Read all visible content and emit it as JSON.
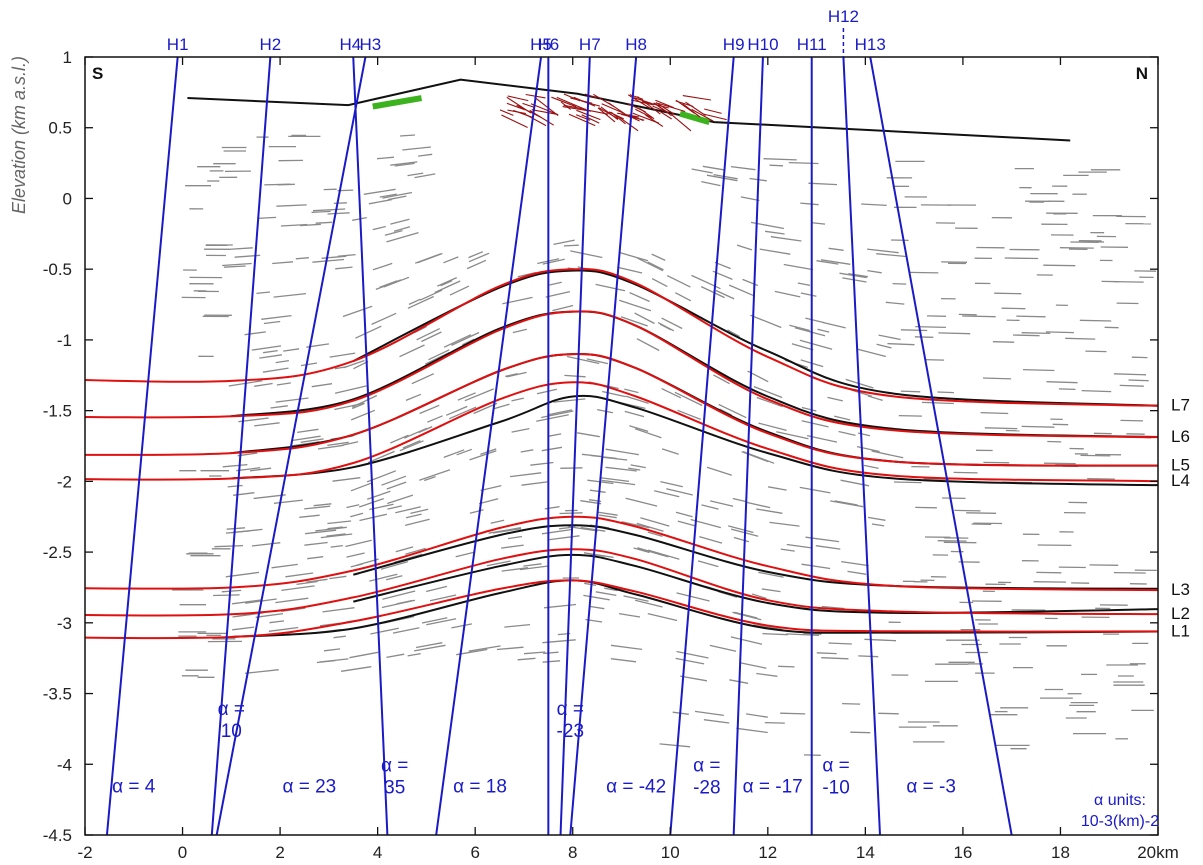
{
  "axes": {
    "ylabel": "Elevation (km a.s.l.)",
    "x_unit": "km",
    "xlim": [
      -2,
      20
    ],
    "ylim": [
      -4.5,
      1
    ],
    "xticks": [
      -2,
      0,
      2,
      4,
      6,
      8,
      10,
      12,
      14,
      16,
      18,
      20
    ],
    "xtick_labels": [
      "-2",
      "0",
      "2",
      "4",
      "6",
      "8",
      "10",
      "12",
      "14",
      "16",
      "18",
      "20km"
    ],
    "yticks": [
      1,
      0.5,
      0,
      -0.5,
      -1,
      -1.5,
      -2,
      -2.5,
      -3,
      -3.5,
      -4,
      -4.5
    ],
    "ytick_labels": [
      "1",
      "0.5",
      "0",
      "-0.5",
      "-1",
      "-1.5",
      "-2",
      "-2.5",
      "-3",
      "-3.5",
      "-4",
      "-4.5"
    ]
  },
  "compass": {
    "left": "S",
    "right": "N"
  },
  "colors": {
    "hinge": "#1a1ac8",
    "model": "#e01010",
    "observed": "#111111",
    "dips": "#8a8a8a",
    "green_segment": "#3cb21e",
    "arrows": "#9a1010",
    "topography": "#111111"
  },
  "topography": [
    [
      0.1,
      0.71
    ],
    [
      3.4,
      0.66
    ],
    [
      5.7,
      0.84
    ],
    [
      8.1,
      0.74
    ],
    [
      10.9,
      0.54
    ],
    [
      18.2,
      0.41
    ]
  ],
  "green_segments": [
    [
      [
        3.9,
        0.65
      ],
      [
        4.9,
        0.71
      ]
    ],
    [
      [
        10.2,
        0.6
      ],
      [
        10.8,
        0.54
      ]
    ]
  ],
  "hinge_lines": [
    {
      "label": "H1",
      "top_x": -0.1,
      "bottom_x": -1.55
    },
    {
      "label": "H2",
      "top_x": 1.8,
      "bottom_x": 0.6
    },
    {
      "label": "H4",
      "top_x": 3.5,
      "bottom_x": 4.2
    },
    {
      "label": "H3",
      "top_x": 3.75,
      "bottom_x": 0.7
    },
    {
      "label": "H5",
      "top_x": 7.35,
      "bottom_x": 5.2
    },
    {
      "label": "H6",
      "top_x": 7.5,
      "bottom_x": 7.5
    },
    {
      "label": "H7",
      "top_x": 8.35,
      "bottom_x": 7.75
    },
    {
      "label": "H8",
      "top_x": 9.3,
      "bottom_x": 7.95
    },
    {
      "label": "H9",
      "top_x": 11.3,
      "bottom_x": 10.0
    },
    {
      "label": "H10",
      "top_x": 11.9,
      "bottom_x": 11.3
    },
    {
      "label": "H11",
      "top_x": 12.9,
      "bottom_x": 12.9
    },
    {
      "label": "H12",
      "top_x": 13.55,
      "bottom_x": 14.3,
      "dashed_top": true
    },
    {
      "label": "H13",
      "top_x": 14.1,
      "bottom_x": 17.0
    }
  ],
  "horizons": [
    {
      "label": "L7",
      "model": [
        [
          -3.4,
          -1.27
        ],
        [
          1.0,
          -1.29
        ],
        [
          3.5,
          -1.15
        ],
        [
          6.5,
          -0.62
        ],
        [
          8.0,
          -0.5
        ],
        [
          9.3,
          -0.6
        ],
        [
          12.0,
          -1.12
        ],
        [
          14.6,
          -1.4
        ],
        [
          20.5,
          -1.47
        ]
      ],
      "observed": [
        [
          3.5,
          -1.15
        ],
        [
          6.5,
          -0.63
        ],
        [
          8.0,
          -0.51
        ],
        [
          9.3,
          -0.61
        ],
        [
          12.0,
          -1.08
        ],
        [
          14.6,
          -1.38
        ],
        [
          20.5,
          -1.47
        ]
      ]
    },
    {
      "label": "L6",
      "model": [
        [
          -3.4,
          -1.54
        ],
        [
          1.0,
          -1.54
        ],
        [
          3.5,
          -1.43
        ],
        [
          6.5,
          -0.93
        ],
        [
          8.0,
          -0.8
        ],
        [
          9.3,
          -0.9
        ],
        [
          12.0,
          -1.42
        ],
        [
          14.6,
          -1.64
        ],
        [
          20.5,
          -1.69
        ]
      ],
      "observed": [
        [
          1.0,
          -1.54
        ],
        [
          3.5,
          -1.42
        ],
        [
          6.5,
          -0.92
        ],
        [
          8.0,
          -0.8
        ],
        [
          9.3,
          -0.9
        ],
        [
          12.0,
          -1.4
        ],
        [
          14.6,
          -1.63
        ],
        [
          20.5,
          -1.69
        ]
      ]
    },
    {
      "label": "L5",
      "model": [
        [
          -3.4,
          -1.81
        ],
        [
          1.0,
          -1.8
        ],
        [
          3.5,
          -1.67
        ],
        [
          6.5,
          -1.22
        ],
        [
          8.0,
          -1.1
        ],
        [
          9.3,
          -1.2
        ],
        [
          12.0,
          -1.66
        ],
        [
          14.6,
          -1.86
        ],
        [
          20.5,
          -1.89
        ]
      ],
      "observed": [
        [
          1.0,
          -1.8
        ],
        [
          3.5,
          -1.67
        ],
        [
          6.5,
          -1.22
        ],
        [
          8.0,
          -1.1
        ],
        [
          9.3,
          -1.2
        ],
        [
          12.0,
          -1.65
        ],
        [
          14.6,
          -1.86
        ],
        [
          20.5,
          -1.89
        ]
      ]
    },
    {
      "label": "L4",
      "model": [
        [
          -3.4,
          -1.98
        ],
        [
          1.0,
          -1.98
        ],
        [
          3.5,
          -1.87
        ],
        [
          6.5,
          -1.42
        ],
        [
          8.0,
          -1.3
        ],
        [
          9.3,
          -1.4
        ],
        [
          12.0,
          -1.77
        ],
        [
          14.6,
          -1.96
        ],
        [
          20.5,
          -2.0
        ]
      ],
      "observed": [
        [
          1.0,
          -1.98
        ],
        [
          3.5,
          -1.9
        ],
        [
          6.5,
          -1.58
        ],
        [
          8.0,
          -1.4
        ],
        [
          9.3,
          -1.48
        ],
        [
          12.0,
          -1.8
        ],
        [
          14.6,
          -1.98
        ],
        [
          20.5,
          -2.03
        ]
      ]
    },
    {
      "label": "L3",
      "model": [
        [
          -3.4,
          -2.75
        ],
        [
          1.0,
          -2.75
        ],
        [
          3.5,
          -2.63
        ],
        [
          6.5,
          -2.33
        ],
        [
          8.0,
          -2.25
        ],
        [
          9.3,
          -2.32
        ],
        [
          12.0,
          -2.6
        ],
        [
          14.6,
          -2.74
        ],
        [
          20.5,
          -2.77
        ]
      ],
      "observed": [
        [
          3.5,
          -2.66
        ],
        [
          6.5,
          -2.38
        ],
        [
          8.0,
          -2.31
        ],
        [
          9.3,
          -2.38
        ],
        [
          12.0,
          -2.64
        ],
        [
          14.6,
          -2.74
        ],
        [
          20.5,
          -2.76
        ]
      ]
    },
    {
      "label": "L2",
      "model": [
        [
          -3.4,
          -2.94
        ],
        [
          1.0,
          -2.94
        ],
        [
          3.5,
          -2.82
        ],
        [
          6.5,
          -2.55
        ],
        [
          8.0,
          -2.48
        ],
        [
          9.3,
          -2.55
        ],
        [
          12.0,
          -2.84
        ],
        [
          14.6,
          -2.92
        ],
        [
          20.5,
          -2.94
        ]
      ],
      "observed": [
        [
          3.5,
          -2.85
        ],
        [
          6.5,
          -2.6
        ],
        [
          8.0,
          -2.52
        ],
        [
          9.3,
          -2.6
        ],
        [
          12.0,
          -2.86
        ],
        [
          14.6,
          -2.93
        ],
        [
          20.5,
          -2.9
        ]
      ]
    },
    {
      "label": "L1",
      "model": [
        [
          -3.4,
          -3.1
        ],
        [
          1.0,
          -3.1
        ],
        [
          3.5,
          -2.99
        ],
        [
          6.5,
          -2.76
        ],
        [
          8.0,
          -2.7
        ],
        [
          9.3,
          -2.78
        ],
        [
          12.0,
          -3.02
        ],
        [
          14.6,
          -3.06
        ],
        [
          20.5,
          -3.06
        ]
      ],
      "observed": [
        [
          1.0,
          -3.1
        ],
        [
          3.5,
          -3.04
        ],
        [
          6.5,
          -2.79
        ],
        [
          8.0,
          -2.7
        ],
        [
          9.3,
          -2.8
        ],
        [
          12.0,
          -3.04
        ],
        [
          14.6,
          -3.07
        ],
        [
          20.5,
          -3.06
        ]
      ]
    }
  ],
  "alpha_labels": [
    {
      "text": [
        "α = 4"
      ],
      "x": -1.0,
      "y": -4.2
    },
    {
      "text": [
        "α =",
        "10"
      ],
      "x": 1.0,
      "y": -3.65
    },
    {
      "text": [
        "α = 23"
      ],
      "x": 2.6,
      "y": -4.2
    },
    {
      "text": [
        "α =",
        "35"
      ],
      "x": 4.35,
      "y": -4.05
    },
    {
      "text": [
        "α = 18"
      ],
      "x": 6.1,
      "y": -4.2
    },
    {
      "text": [
        "α =",
        "-23"
      ],
      "x": 7.95,
      "y": -3.65
    },
    {
      "text": [
        "α = -42"
      ],
      "x": 9.3,
      "y": -4.2
    },
    {
      "text": [
        "α =",
        "-28"
      ],
      "x": 10.75,
      "y": -4.05
    },
    {
      "text": [
        "α = -17"
      ],
      "x": 12.1,
      "y": -4.2
    },
    {
      "text": [
        "α =",
        "-10"
      ],
      "x": 13.4,
      "y": -4.05
    },
    {
      "text": [
        "α = -3"
      ],
      "x": 15.35,
      "y": -4.2
    }
  ],
  "units_note": {
    "line1": "α units:",
    "line2": "10-3(km)-2"
  }
}
